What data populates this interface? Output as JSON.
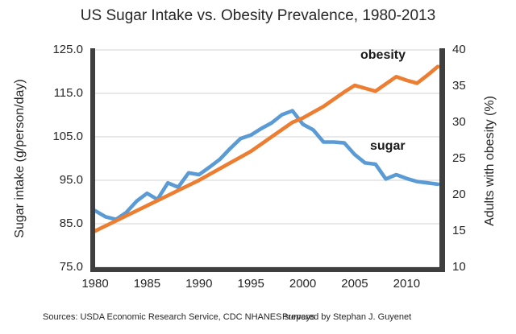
{
  "title": "US Sugar Intake vs. Obesity Prevalence, 1980-2013",
  "footer": {
    "sources": "Sources: USDA Economic Research Service, CDC NHANES surveys",
    "prepared": "Prepared by Stephan J. Guyenet"
  },
  "colors": {
    "sugar_line": "#5B9BD5",
    "obesity_line": "#ED7D31",
    "axis_bar": "#3f3f3f",
    "gridline": "#dcdcdc",
    "text": "#262626"
  },
  "chart_data": {
    "type": "line",
    "title": "US Sugar Intake vs. Obesity Prevalence, 1980-2013",
    "grid": true,
    "x": [
      1980,
      1981,
      1982,
      1983,
      1984,
      1985,
      1986,
      1987,
      1988,
      1989,
      1990,
      1991,
      1992,
      1993,
      1994,
      1995,
      1996,
      1997,
      1998,
      1999,
      2000,
      2001,
      2002,
      2003,
      2004,
      2005,
      2006,
      2007,
      2008,
      2009,
      2010,
      2011,
      2012,
      2013
    ],
    "series": [
      {
        "name": "sugar",
        "label": "sugar",
        "axis": "left",
        "color": "#5B9BD5",
        "values": [
          88.0,
          86.6,
          86.0,
          87.6,
          90.2,
          92.0,
          90.6,
          94.4,
          93.4,
          96.7,
          96.3,
          98.0,
          99.8,
          102.3,
          104.6,
          105.4,
          106.9,
          108.2,
          110.1,
          111.0,
          107.9,
          106.6,
          103.8,
          103.8,
          103.6,
          100.9,
          99.0,
          98.7,
          95.3,
          96.3,
          95.4,
          94.7,
          94.4,
          94.1
        ]
      },
      {
        "name": "obesity",
        "label": "obesity",
        "axis": "right",
        "color": "#ED7D31",
        "values": [
          15.0,
          15.7,
          16.4,
          17.1,
          17.8,
          18.5,
          19.2,
          19.9,
          20.6,
          21.3,
          22.0,
          22.8,
          23.6,
          24.4,
          25.2,
          26.0,
          27.0,
          28.0,
          29.0,
          30.0,
          30.6,
          31.4,
          32.2,
          33.2,
          34.2,
          35.1,
          34.7,
          34.3,
          35.3,
          36.3,
          35.8,
          35.4,
          36.5,
          37.7
        ]
      }
    ],
    "left_axis": {
      "label": "Sugar intake (g/person/day)",
      "range": [
        75,
        125
      ],
      "ticks": [
        125,
        115,
        105,
        95,
        85,
        75
      ],
      "tick_labels": [
        "125.0",
        "115.0",
        "105.0",
        "95.0",
        "85.0",
        "75.0"
      ]
    },
    "right_axis": {
      "label": "Adults with obesity (%)",
      "range": [
        10,
        40
      ],
      "ticks": [
        40,
        35,
        30,
        25,
        20,
        15,
        10
      ],
      "tick_labels": [
        "40",
        "35",
        "30",
        "25",
        "20",
        "15",
        "10"
      ]
    },
    "x_axis": {
      "range": [
        1980,
        2013
      ],
      "ticks": [
        1980,
        1985,
        1990,
        1995,
        2000,
        2005,
        2010
      ],
      "tick_labels": [
        "1980",
        "1985",
        "1990",
        "1995",
        "2000",
        "2005",
        "2010"
      ]
    },
    "annotations": [
      {
        "text": "obesity"
      },
      {
        "text": "sugar"
      }
    ]
  }
}
